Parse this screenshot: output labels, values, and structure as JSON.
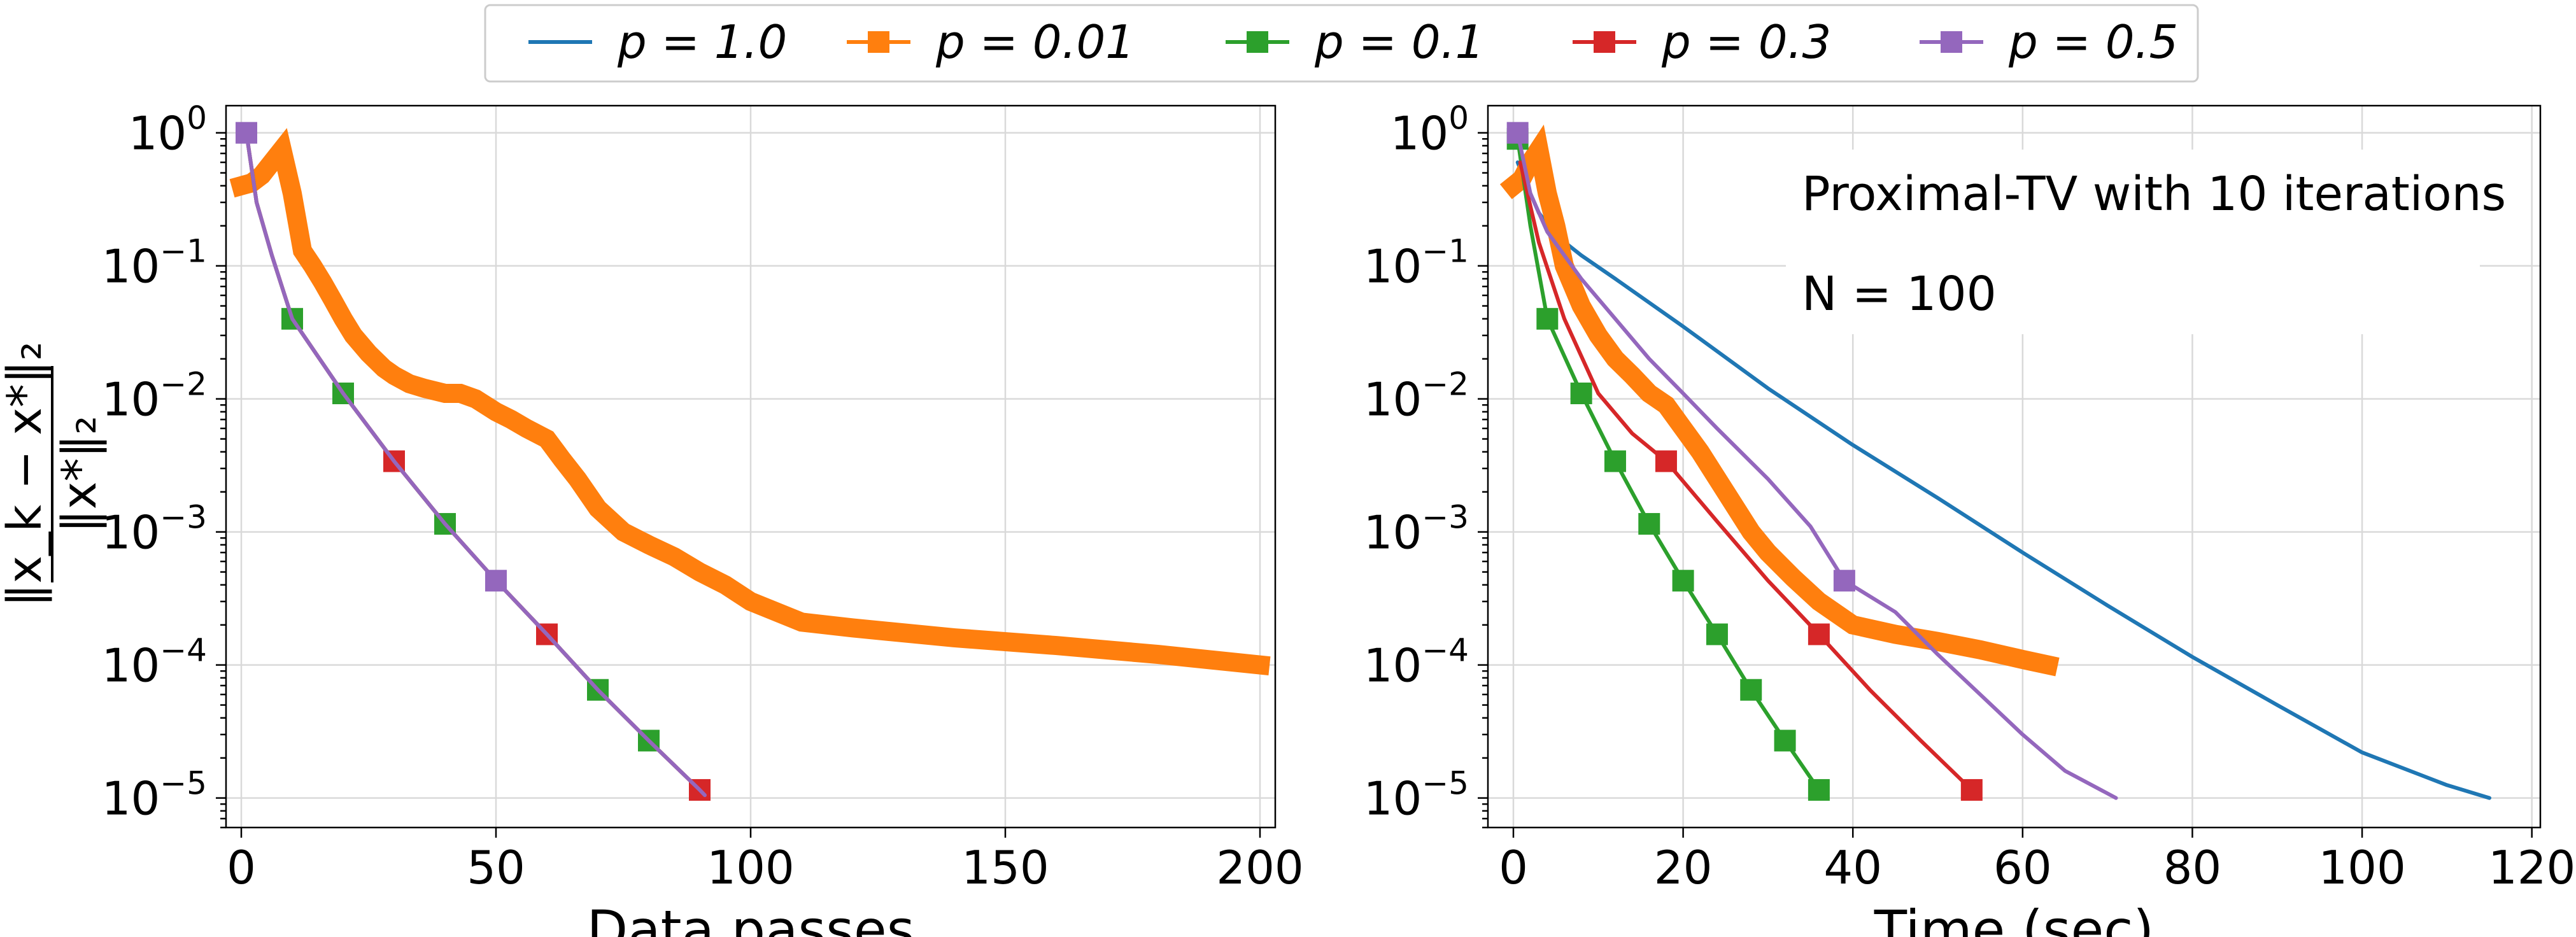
{
  "legend": [
    {
      "label": "p = 1.0",
      "color": "#1f77b4",
      "marker": false
    },
    {
      "label": "p = 0.01",
      "color": "#ff7f0e",
      "marker": true
    },
    {
      "label": "p = 0.1",
      "color": "#2ca02c",
      "marker": true
    },
    {
      "label": "p = 0.3",
      "color": "#d62728",
      "marker": true
    },
    {
      "label": "p = 0.5",
      "color": "#9467bd",
      "marker": true
    }
  ],
  "ylabel": {
    "numerator": "‖x_k − x*‖₂",
    "denominator": "‖x*‖₂"
  },
  "annotation": {
    "line1": "Proximal-TV with 10 iterations",
    "line2": "N =  100"
  },
  "chart_data": [
    {
      "type": "line",
      "title": "",
      "xlabel": "Data passes",
      "ylabel": "||x_k - x*||_2 / ||x*||_2",
      "yscale": "log",
      "xlim": [
        -3,
        203
      ],
      "ylim": [
        6e-06,
        1.6
      ],
      "xticks": [
        0,
        50,
        100,
        150,
        200
      ],
      "yticks": [
        1,
        0.1,
        0.01,
        0.001,
        0.0001,
        1e-05
      ],
      "ytick_labels": [
        "10^0",
        "10^-1",
        "10^-2",
        "10^-3",
        "10^-4",
        "10^-5"
      ],
      "grid": true,
      "series": [
        {
          "name": "p = 0.01",
          "color": "#ff7f0e",
          "x": [
            0,
            2,
            4,
            6,
            8,
            10,
            12,
            14,
            16,
            18,
            20,
            22,
            25,
            28,
            30,
            33,
            36,
            40,
            43,
            46,
            50,
            53,
            56,
            60,
            63,
            66,
            70,
            75,
            80,
            85,
            90,
            95,
            100,
            110,
            120,
            140,
            160,
            180,
            200
          ],
          "y": [
            0.4,
            0.42,
            0.48,
            0.6,
            0.75,
            0.35,
            0.13,
            0.1,
            0.075,
            0.055,
            0.04,
            0.03,
            0.022,
            0.017,
            0.015,
            0.013,
            0.012,
            0.011,
            0.011,
            0.01,
            0.008,
            0.007,
            0.006,
            0.005,
            0.0035,
            0.0025,
            0.0015,
            0.001,
            0.0008,
            0.00065,
            0.0005,
            0.0004,
            0.0003,
            0.00021,
            0.00019,
            0.00016,
            0.00014,
            0.00012,
            0.0001
          ]
        },
        {
          "name": "p = 0.1",
          "color": "#2ca02c",
          "x": [
            1,
            3,
            6,
            10,
            20,
            30,
            40,
            50,
            60,
            70,
            80,
            90
          ],
          "y": [
            1.0,
            0.3,
            0.12,
            0.04,
            0.011,
            0.0034,
            0.00115,
            0.00043,
            0.00017,
            6.5e-05,
            2.7e-05,
            1.15e-05
          ],
          "markers_at": [
            10,
            20,
            40,
            70,
            80
          ]
        },
        {
          "name": "p = 0.3",
          "color": "#d62728",
          "x": [
            1,
            3,
            6,
            10,
            20,
            30,
            40,
            50,
            60,
            70,
            80,
            90
          ],
          "y": [
            1.0,
            0.3,
            0.12,
            0.04,
            0.011,
            0.0034,
            0.00115,
            0.00043,
            0.00017,
            6.5e-05,
            2.7e-05,
            1.15e-05
          ],
          "markers_at": [
            30,
            60,
            90
          ]
        },
        {
          "name": "p = 0.5",
          "color": "#9467bd",
          "x": [
            1,
            3,
            6,
            10,
            20,
            30,
            40,
            50,
            60,
            70,
            80,
            90,
            91
          ],
          "y": [
            1.0,
            0.3,
            0.12,
            0.04,
            0.011,
            0.0034,
            0.00115,
            0.00043,
            0.00017,
            6.5e-05,
            2.7e-05,
            1.15e-05,
            1.05e-05
          ],
          "markers_at": [
            1,
            50
          ]
        }
      ]
    },
    {
      "type": "line",
      "title": "",
      "xlabel": "Time (sec)",
      "ylabel": "",
      "yscale": "log",
      "xlim": [
        -3,
        121
      ],
      "ylim": [
        6e-06,
        1.6
      ],
      "xticks": [
        0,
        20,
        40,
        60,
        80,
        100,
        120
      ],
      "yticks": [
        1,
        0.1,
        0.01,
        0.001,
        0.0001,
        1e-05
      ],
      "ytick_labels": [
        "10^0",
        "10^-1",
        "10^-2",
        "10^-3",
        "10^-4",
        "10^-5"
      ],
      "grid": true,
      "series": [
        {
          "name": "p = 1.0",
          "color": "#1f77b4",
          "x": [
            0.5,
            1,
            2,
            3,
            5,
            8,
            12,
            20,
            30,
            40,
            50,
            60,
            70,
            80,
            90,
            100,
            110,
            115
          ],
          "y": [
            0.6,
            0.5,
            0.35,
            0.25,
            0.17,
            0.12,
            0.08,
            0.035,
            0.012,
            0.0045,
            0.0018,
            0.0007,
            0.00028,
            0.000115,
            5e-05,
            2.2e-05,
            1.25e-05,
            1e-05
          ]
        },
        {
          "name": "p = 0.01",
          "color": "#ff7f0e",
          "x": [
            0,
            1,
            2,
            3,
            4,
            5,
            6,
            8,
            10,
            12,
            14,
            16,
            18,
            20,
            22,
            25,
            28,
            30,
            33,
            36,
            40,
            45,
            50,
            55,
            60,
            63
          ],
          "y": [
            0.4,
            0.45,
            0.6,
            0.75,
            0.35,
            0.2,
            0.1,
            0.05,
            0.03,
            0.02,
            0.015,
            0.011,
            0.009,
            0.006,
            0.004,
            0.002,
            0.001,
            0.0007,
            0.00045,
            0.0003,
            0.0002,
            0.00017,
            0.00015,
            0.00013,
            0.00011,
            0.0001
          ]
        },
        {
          "name": "p = 0.1",
          "color": "#2ca02c",
          "x": [
            0.5,
            2,
            4,
            8,
            12,
            16,
            20,
            24,
            28,
            32,
            36
          ],
          "y": [
            0.9,
            0.2,
            0.04,
            0.011,
            0.0034,
            0.00115,
            0.00043,
            0.00017,
            6.5e-05,
            2.7e-05,
            1.15e-05
          ],
          "markers_at": [
            0.5,
            4,
            8,
            12,
            16,
            20,
            24,
            28,
            32,
            36
          ]
        },
        {
          "name": "p = 0.3",
          "color": "#d62728",
          "x": [
            0.8,
            3,
            6,
            10,
            14,
            18,
            24,
            30,
            36,
            42,
            48,
            54
          ],
          "y": [
            0.6,
            0.15,
            0.04,
            0.011,
            0.0055,
            0.0034,
            0.0012,
            0.00043,
            0.00017,
            6.5e-05,
            2.7e-05,
            1.15e-05
          ],
          "markers_at": [
            18,
            36,
            54
          ]
        },
        {
          "name": "p = 0.5",
          "color": "#9467bd",
          "x": [
            0.5,
            2,
            4,
            8,
            12,
            16,
            20,
            24,
            30,
            35,
            39,
            45,
            50,
            55,
            60,
            65,
            71
          ],
          "y": [
            1.0,
            0.35,
            0.18,
            0.08,
            0.04,
            0.02,
            0.011,
            0.006,
            0.0025,
            0.0011,
            0.00043,
            0.00025,
            0.00012,
            6e-05,
            3e-05,
            1.6e-05,
            1e-05
          ],
          "markers_at": [
            0.5,
            39
          ]
        }
      ]
    }
  ]
}
